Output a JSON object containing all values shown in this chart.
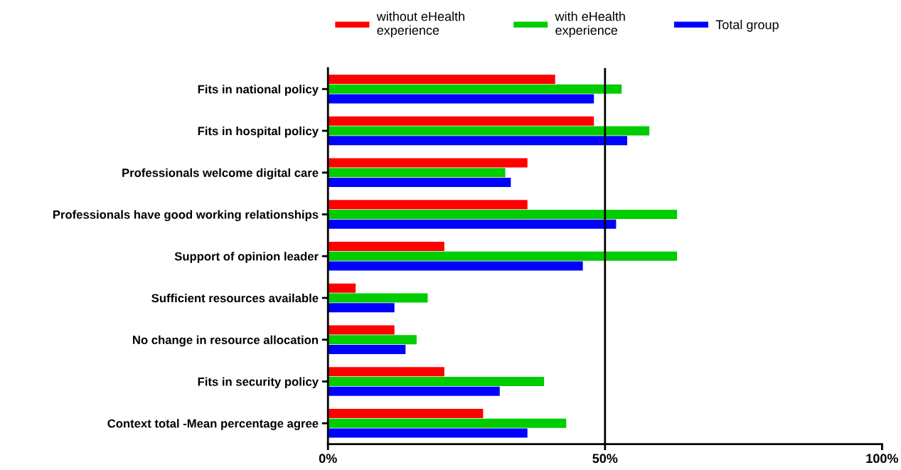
{
  "chart_data": {
    "type": "bar",
    "orientation": "horizontal",
    "categories": [
      "Fits in national policy",
      "Fits in hospital policy",
      "Professionals welcome digital care",
      "Professionals have good working relationships",
      "Support of opinion leader",
      "Sufficient resources available",
      "No change in resource allocation",
      "Fits in security policy",
      "Context total -Mean percentage agree"
    ],
    "series": [
      {
        "name": "without eHealth\nexperience",
        "color": "#ff0000",
        "values": [
          41,
          48,
          36,
          36,
          21,
          5,
          12,
          21,
          28
        ]
      },
      {
        "name": "with eHealth\nexperience",
        "color": "#00cc00",
        "values": [
          53,
          58,
          32,
          63,
          63,
          18,
          16,
          39,
          43
        ]
      },
      {
        "name": "Total group",
        "color": "#0000ff",
        "values": [
          48,
          54,
          33,
          52,
          46,
          12,
          14,
          31,
          36
        ]
      }
    ],
    "xlim": [
      0,
      100
    ],
    "xticks": [
      {
        "value": 0,
        "label": "0%"
      },
      {
        "value": 50,
        "label": "50%"
      },
      {
        "value": 100,
        "label": "100%"
      }
    ],
    "ref_lines": [
      {
        "axis": "x",
        "value": 50,
        "color": "#000000"
      }
    ],
    "grid": false,
    "legend": "top"
  }
}
